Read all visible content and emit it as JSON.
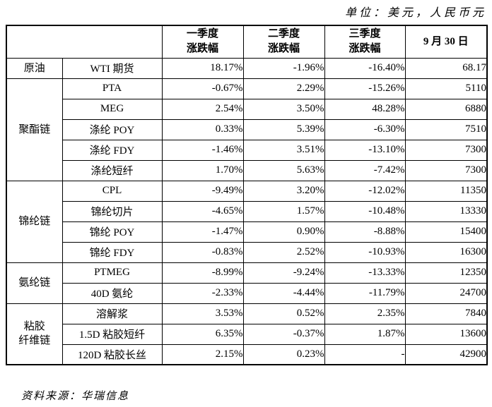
{
  "unit_note": "单位：美元，人民币元",
  "source_note": "资料来源：华瑞信息",
  "chart_data": {
    "type": "table",
    "columns": [
      "",
      "",
      "一季度涨跌幅",
      "二季度涨跌幅",
      "三季度涨跌幅",
      "9 月 30 日"
    ],
    "header": {
      "blank": "",
      "q1": "一季度\n涨跌幅",
      "q2": "二季度\n涨跌幅",
      "q3": "三季度\n涨跌幅",
      "date": "9 月 30 日"
    },
    "groups": [
      {
        "group": "原油",
        "rows": [
          {
            "name": "WTI 期货",
            "q1": "18.17%",
            "q2": "-1.96%",
            "q3": "-16.40%",
            "price": "68.17"
          }
        ]
      },
      {
        "group": "聚酯链",
        "rows": [
          {
            "name": "PTA",
            "q1": "-0.67%",
            "q2": "2.29%",
            "q3": "-15.26%",
            "price": "5110"
          },
          {
            "name": "MEG",
            "q1": "2.54%",
            "q2": "3.50%",
            "q3": "48.28%",
            "price": "6880"
          },
          {
            "name": "涤纶 POY",
            "q1": "0.33%",
            "q2": "5.39%",
            "q3": "-6.30%",
            "price": "7510"
          },
          {
            "name": "涤纶 FDY",
            "q1": "-1.46%",
            "q2": "3.51%",
            "q3": "-13.10%",
            "price": "7300"
          },
          {
            "name": "涤纶短纤",
            "q1": "1.70%",
            "q2": "5.63%",
            "q3": "-7.42%",
            "price": "7300"
          }
        ]
      },
      {
        "group": "锦纶链",
        "rows": [
          {
            "name": "CPL",
            "q1": "-9.49%",
            "q2": "3.20%",
            "q3": "-12.02%",
            "price": "11350"
          },
          {
            "name": "锦纶切片",
            "q1": "-4.65%",
            "q2": "1.57%",
            "q3": "-10.48%",
            "price": "13330"
          },
          {
            "name": "锦纶 POY",
            "q1": "-1.47%",
            "q2": "0.90%",
            "q3": "-8.88%",
            "price": "15400"
          },
          {
            "name": "锦纶 FDY",
            "q1": "-0.83%",
            "q2": "2.52%",
            "q3": "-10.93%",
            "price": "16300"
          }
        ]
      },
      {
        "group": "氨纶链",
        "rows": [
          {
            "name": "PTMEG",
            "q1": "-8.99%",
            "q2": "-9.24%",
            "q3": "-13.33%",
            "price": "12350"
          },
          {
            "name": "40D 氨纶",
            "q1": "-2.33%",
            "q2": "-4.44%",
            "q3": "-11.79%",
            "price": "24700"
          }
        ]
      },
      {
        "group": "粘胶\n纤维链",
        "rows": [
          {
            "name": "溶解浆",
            "q1": "3.53%",
            "q2": "0.52%",
            "q3": "2.35%",
            "price": "7840"
          },
          {
            "name": "1.5D 粘胶短纤",
            "q1": "6.35%",
            "q2": "-0.37%",
            "q3": "1.87%",
            "price": "13600"
          },
          {
            "name": "120D 粘胶长丝",
            "q1": "2.15%",
            "q2": "0.23%",
            "q3": "-",
            "price": "42900"
          }
        ]
      }
    ]
  }
}
